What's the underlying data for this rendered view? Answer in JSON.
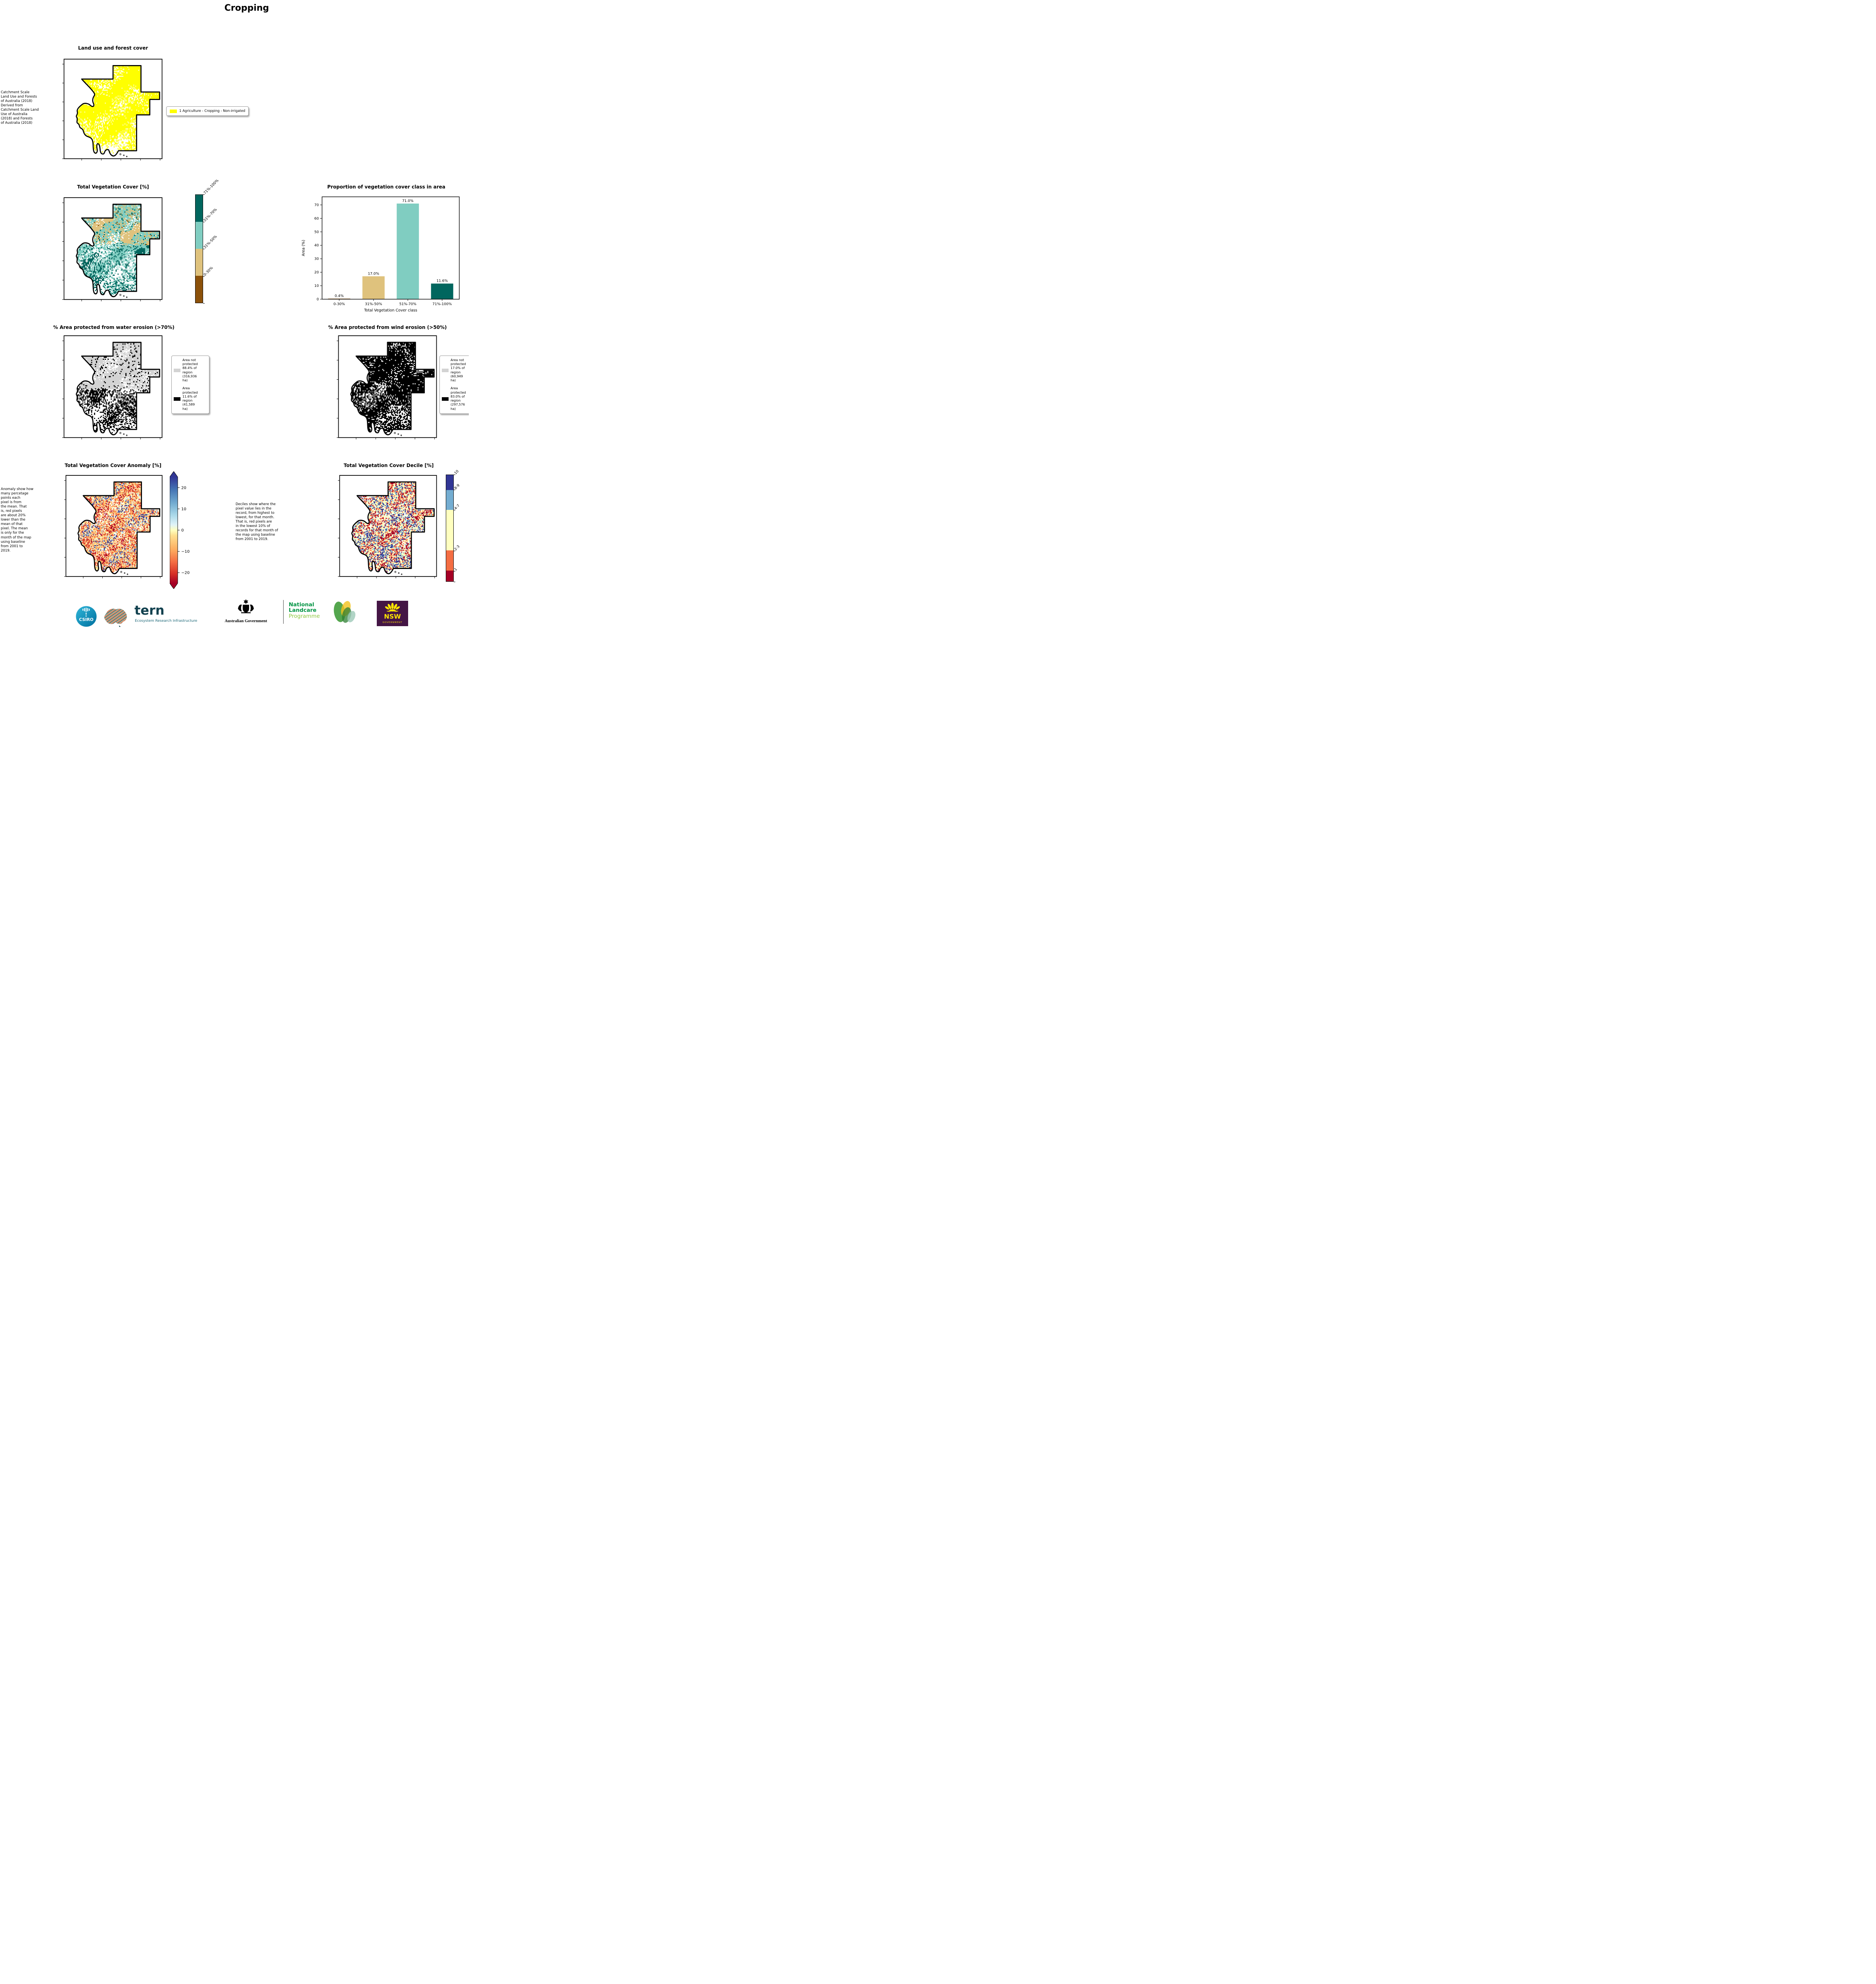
{
  "page": {
    "title": "Cropping"
  },
  "panels": {
    "landuse": {
      "title": "Land use and forest cover",
      "note": " Catchment Scale\nLand Use and Forests\nof Australia (2018)\nDerived from\nCatchment Scale Land\nUse of Australia\n(2018) and Forests\nof Australia (2018)",
      "legend": {
        "label": "1 Agriculture - Cropping - Non-irrigated",
        "color": "#FFFF00"
      }
    },
    "tvc": {
      "title": "Total Vegetation Cover [%]",
      "colorbar": [
        {
          "label": "71%-100%",
          "color": "#01665E"
        },
        {
          "label": "51%-70%",
          "color": "#80CDC1"
        },
        {
          "label": "31%-50%",
          "color": "#DFC27D"
        },
        {
          "label": "0-30%",
          "color": "#8C510A"
        }
      ]
    },
    "water": {
      "title": "% Area protected from water erosion (>70%)",
      "legend": [
        {
          "label": "Area not\nprotected\n88.4% of\nregion\n(316,936\nha)",
          "color": "#D3D3D3"
        },
        {
          "label": "Area\nprotected\n11.6% of\nregion\n(41,589\nha)",
          "color": "#000000"
        }
      ]
    },
    "wind": {
      "title": "% Area protected from wind erosion (>50%)",
      "legend": [
        {
          "label": "Area not\nprotected\n17.0% of\nregion\n(60,949\nha)",
          "color": "#D3D3D3"
        },
        {
          "label": "Area\nprotected\n83.0% of\nregion\n(297,576\nha)",
          "color": "#000000"
        }
      ]
    },
    "anomaly": {
      "title": "Total Vegetation Cover Anomaly [%]",
      "note": "Anomaly show how\nmany percetage\npoints each\npixel is from\nthe mean. That\nis, red pixels\nare about 20%\nlower than the\nmean of that\npixel. The mean\nis only for the\nmonth of the map\nusing baseline\nfrom 2001 to\n2019.",
      "colorbar_ticks": [
        "20",
        "10",
        "0",
        "−10",
        "−20"
      ],
      "palette": [
        "#A50026",
        "#D73027",
        "#F46D43",
        "#FDAE61",
        "#FEE090",
        "#FFFFBF",
        "#E0F3F8",
        "#ABD9E9",
        "#74ADD1",
        "#4575B4",
        "#313695"
      ]
    },
    "decile": {
      "title": "Total Vegetation Cover Decile [%]",
      "note": "Deciles show where the\npixel value lies in the\nrecord, from highest to\nlowest, for that month.\nThat is, red pixels are\nin the lowest 10% of\nrecords for that month of\nthe map using baseline\nfrom 2001 to 2019.",
      "colorbar": [
        {
          "label": "10",
          "color": "#313695",
          "frac": 0.14
        },
        {
          "label": "8-9",
          "color": "#74ADD1",
          "frac": 0.19
        },
        {
          "label": "4-7",
          "color": "#FFFFBF",
          "frac": 0.38
        },
        {
          "label": "2-3",
          "color": "#F46D43",
          "frac": 0.19
        },
        {
          "label": "1",
          "color": "#A50026",
          "frac": 0.1
        }
      ]
    }
  },
  "chart_data": {
    "type": "bar",
    "title": "Proportion of vegetation cover class in area",
    "categories": [
      "0-30%",
      "31%-50%",
      "51%-70%",
      "71%-100%"
    ],
    "values": [
      0.4,
      17.0,
      71.0,
      11.6
    ],
    "bar_labels": [
      "0.4%",
      "17.0%",
      "71.0%",
      "11.6%"
    ],
    "colors": [
      "#8C510A",
      "#DFC27D",
      "#80CDC1",
      "#01665E"
    ],
    "xlabel": "Total Vegetation Cover class",
    "ylabel": "Area (%)",
    "ylim": [
      0,
      76
    ],
    "yticks": [
      0,
      10,
      20,
      30,
      40,
      50,
      60,
      70
    ],
    "grid": false,
    "legend_position": "none"
  },
  "map_colors": {
    "cropping_yellow": "#FFFF00",
    "veg_light": "#80CDC1",
    "veg_tan": "#DFC27D",
    "veg_dark": "#01665E",
    "veg_brown": "#8C510A",
    "not_protected_gray": "#D3D3D3",
    "protected_black": "#000000"
  },
  "footer": {
    "csiro": "CSIRO",
    "tern": "tern",
    "tern_subtitle": "Ecosystem Research Infrastructure",
    "aus_gov": "Australian Government",
    "landcare_lines": [
      "National",
      "Landcare",
      "Programme"
    ],
    "nsw": "NSW",
    "nsw_subtitle": "GOVERNMENT",
    "brand_colors": {
      "csiro": "#00A9CE",
      "tern": "#12414F",
      "landcare_green": "#009444",
      "landcare_light": "#8DC63F",
      "nsw_purple": "#441545",
      "nsw_yellow": "#FFE600"
    }
  }
}
